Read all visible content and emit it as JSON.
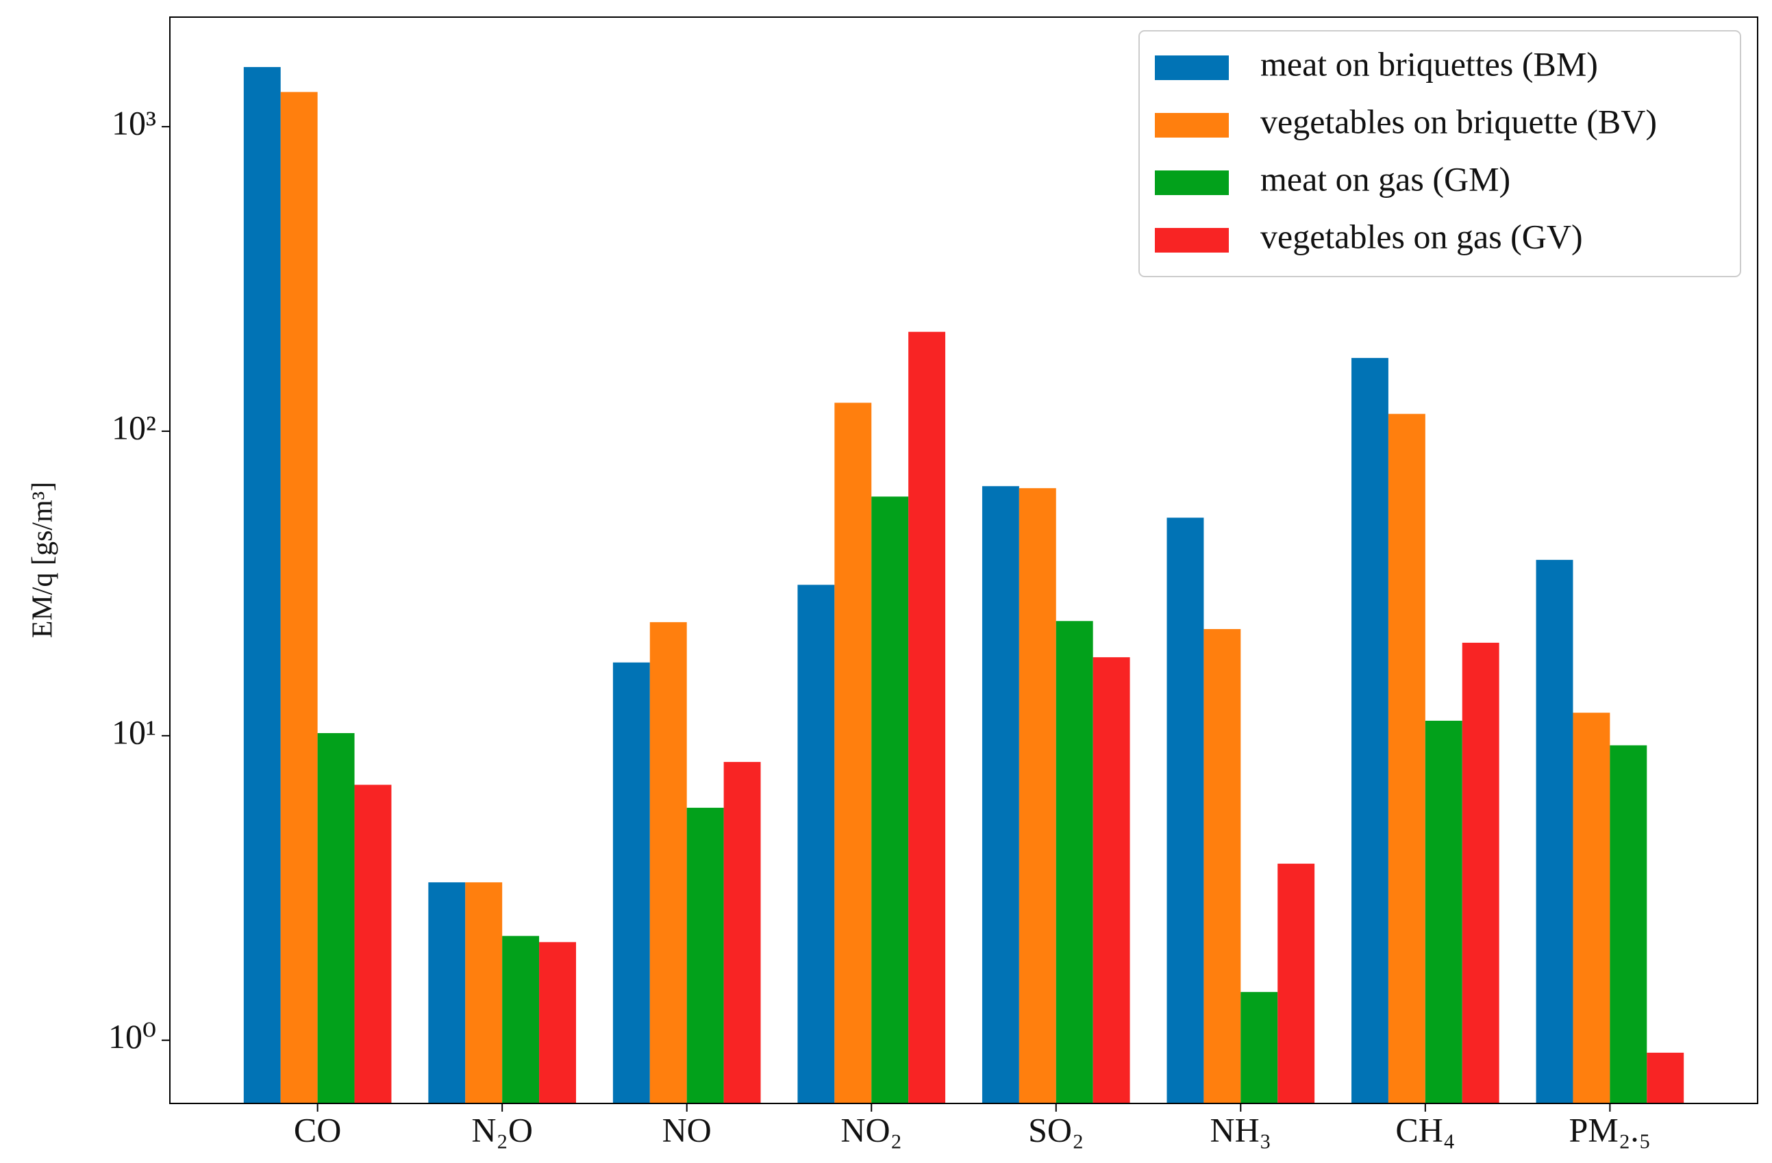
{
  "chart_data": {
    "type": "bar",
    "ylabel": "EM/q [gs/m³]",
    "categories": [
      "CO",
      "N₂O",
      "NO",
      "NO₂",
      "SO₂",
      "NH₃",
      "CH₄",
      "PM₂.₅"
    ],
    "series": [
      {
        "name": "meat on briquettes (BM)",
        "color": "#0173b5",
        "values": [
          1570,
          3.3,
          17.4,
          31.3,
          66,
          52,
          174,
          37.8
        ]
      },
      {
        "name": "vegetables on briquette (BV)",
        "color": "#ff7f0e",
        "values": [
          1300,
          3.3,
          23.6,
          124,
          65,
          22.4,
          114,
          11.9
        ]
      },
      {
        "name": "meat on gas (GM)",
        "color": "#02a11b",
        "values": [
          10.2,
          2.2,
          5.8,
          61,
          23.8,
          1.44,
          11.2,
          9.3
        ]
      },
      {
        "name": "vegetables on gas (GV)",
        "color": "#f82424",
        "values": [
          6.9,
          2.1,
          8.2,
          212,
          18.1,
          3.8,
          20.2,
          0.91
        ]
      }
    ],
    "log_scale": true,
    "ylim": [
      0.62,
      2290
    ],
    "yticks": [
      {
        "value": 1,
        "label": "10⁰"
      },
      {
        "value": 10,
        "label": "10¹"
      },
      {
        "value": 100,
        "label": "10²"
      },
      {
        "value": 1000,
        "label": "10³"
      }
    ],
    "legend": "upper right"
  }
}
